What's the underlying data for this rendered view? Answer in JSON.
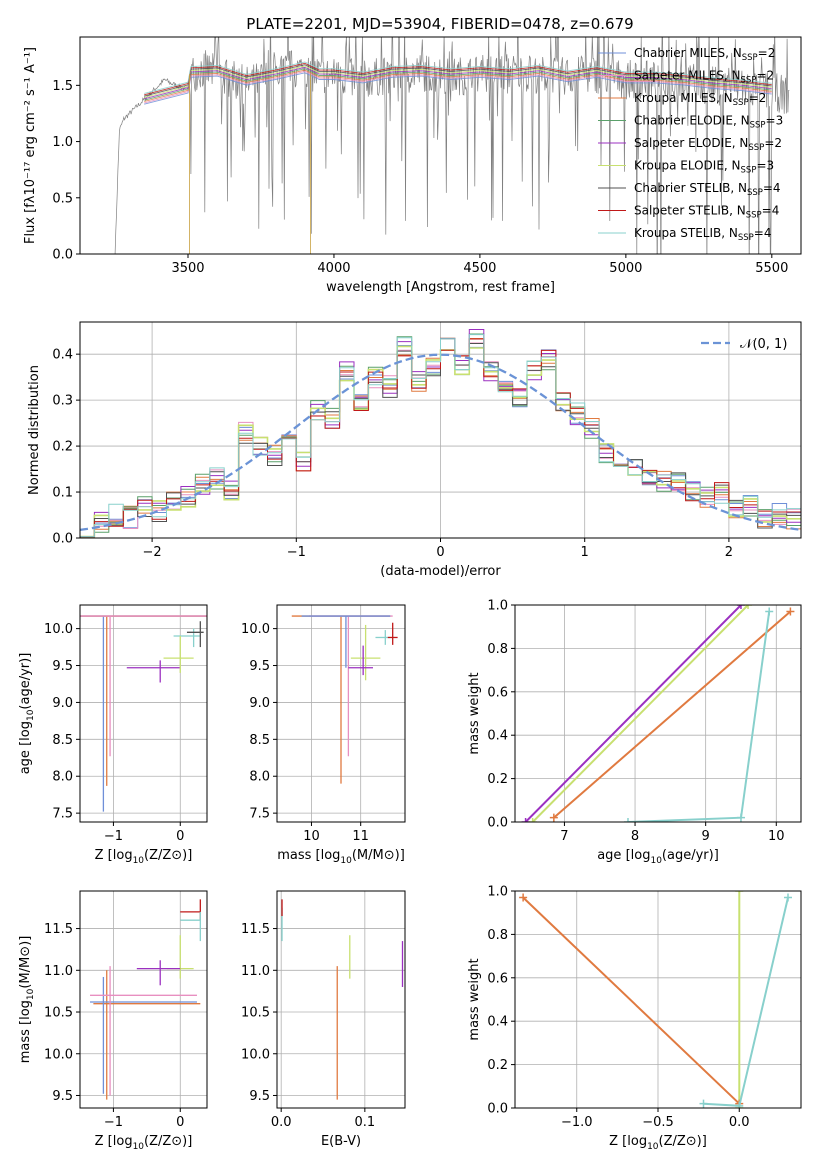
{
  "figure": {
    "title": "PLATE=2201, MJD=53904, FIBERID=0478, z=0.679"
  },
  "series_styles": [
    {
      "name": "Chabrier MILES, N_SSP=2",
      "label_main": "Chabrier MILES, N",
      "label_sub": "SSP",
      "label_tail": "=2",
      "color": "#6f8fd8"
    },
    {
      "name": "Salpeter MILES, N_SSP=2",
      "label_main": "Salpeter MILES, N",
      "label_sub": "SSP",
      "label_tail": "=2",
      "color": "#e88fc0"
    },
    {
      "name": "Kroupa MILES, N_SSP=2",
      "label_main": "Kroupa MILES, N",
      "label_sub": "SSP",
      "label_tail": "=2",
      "color": "#e07a40"
    },
    {
      "name": "Chabrier ELODIE, N_SSP=3",
      "label_main": "Chabrier ELODIE, N",
      "label_sub": "SSP",
      "label_tail": "=3",
      "color": "#5aa06a"
    },
    {
      "name": "Salpeter ELODIE, N_SSP=2",
      "label_main": "Salpeter ELODIE, N",
      "label_sub": "SSP",
      "label_tail": "=2",
      "color": "#9b30c0"
    },
    {
      "name": "Kroupa ELODIE, N_SSP=3",
      "label_main": "Kroupa ELODIE, N",
      "label_sub": "SSP",
      "label_tail": "=3",
      "color": "#c8e070"
    },
    {
      "name": "Chabrier STELIB, N_SSP=4",
      "label_main": "Chabrier STELIB, N",
      "label_sub": "SSP",
      "label_tail": "=4",
      "color": "#505050"
    },
    {
      "name": "Salpeter STELIB, N_SSP=4",
      "label_main": "Salpeter STELIB, N",
      "label_sub": "SSP",
      "label_tail": "=4",
      "color": "#c01818"
    },
    {
      "name": "Kroupa STELIB, N_SSP=4",
      "label_main": "Kroupa STELIB, N",
      "label_sub": "SSP",
      "label_tail": "=4",
      "color": "#88d0cc"
    }
  ],
  "chart_data": [
    {
      "id": "spectrum",
      "type": "line",
      "xlabel": "wavelength [Angstrom, rest frame]",
      "ylabel": "Flux [fλ10⁻¹⁷ erg cm⁻² s⁻¹ A⁻¹]",
      "xlim": [
        3130,
        5600
      ],
      "ylim": [
        0,
        1.93
      ],
      "xticks": [
        3500,
        4000,
        4500,
        5000,
        5500
      ],
      "yticks": [
        0.0,
        0.5,
        1.0,
        1.5
      ],
      "grid": false,
      "legend": "right",
      "data_color": "#808080",
      "data_envelope": {
        "x": [
          3250,
          3265,
          3280,
          3300,
          3320,
          3340,
          3360,
          3380,
          3400,
          3420,
          3440,
          3460,
          3480,
          3500,
          3510,
          3550,
          3600,
          3650,
          3700,
          3750,
          3800,
          3850,
          3900,
          3950,
          4000,
          4100,
          4200,
          4300,
          4400,
          4500,
          4600,
          4700,
          4800,
          4900,
          5000,
          5100,
          5200,
          5300,
          5400,
          5500,
          5560
        ],
        "y": [
          0.0,
          1.1,
          1.2,
          1.25,
          1.3,
          1.35,
          1.4,
          1.45,
          1.5,
          1.55,
          1.52,
          1.5,
          1.48,
          1.45,
          1.6,
          1.65,
          1.6,
          1.55,
          1.5,
          1.55,
          1.6,
          1.65,
          1.62,
          1.6,
          1.58,
          1.55,
          1.6,
          1.62,
          1.58,
          1.6,
          1.62,
          1.6,
          1.58,
          1.6,
          1.55,
          1.55,
          1.52,
          1.5,
          1.48,
          1.45,
          1.4
        ]
      },
      "model_x": [
        3350,
        3500,
        3510,
        3600,
        3700,
        3800,
        3900,
        3950,
        4000,
        4100,
        4200,
        4300,
        4400,
        4500,
        4600,
        4700,
        4800,
        4900,
        5000,
        5100,
        5200,
        5300,
        5400,
        5500
      ],
      "model_y": [
        1.38,
        1.48,
        1.62,
        1.63,
        1.55,
        1.6,
        1.66,
        1.6,
        1.6,
        1.57,
        1.62,
        1.63,
        1.6,
        1.62,
        1.6,
        1.63,
        1.58,
        1.62,
        1.57,
        1.57,
        1.55,
        1.52,
        1.5,
        1.47
      ]
    },
    {
      "id": "residuals",
      "type": "histogram",
      "xlabel": "(data-model)/error",
      "ylabel": "Normed distribution",
      "xlim": [
        -2.5,
        2.5
      ],
      "ylim": [
        0,
        0.47
      ],
      "xticks": [
        -2,
        -1,
        0,
        1,
        2
      ],
      "yticks": [
        0.0,
        0.1,
        0.2,
        0.3,
        0.4
      ],
      "grid": true,
      "legend": "top-right",
      "bin_edges": [
        -2.5,
        -2.4,
        -2.3,
        -2.2,
        -2.1,
        -2.0,
        -1.9,
        -1.8,
        -1.7,
        -1.6,
        -1.5,
        -1.4,
        -1.3,
        -1.2,
        -1.1,
        -1.0,
        -0.9,
        -0.8,
        -0.7,
        -0.6,
        -0.5,
        -0.4,
        -0.3,
        -0.2,
        -0.1,
        0.0,
        0.1,
        0.2,
        0.3,
        0.4,
        0.5,
        0.6,
        0.7,
        0.8,
        0.9,
        1.0,
        1.1,
        1.2,
        1.3,
        1.4,
        1.5,
        1.6,
        1.7,
        1.8,
        1.9,
        2.0,
        2.1,
        2.2,
        2.3,
        2.4,
        2.5
      ],
      "counts": [
        0.028,
        0.035,
        0.05,
        0.045,
        0.065,
        0.06,
        0.075,
        0.09,
        0.12,
        0.13,
        0.1,
        0.23,
        0.2,
        0.18,
        0.22,
        0.17,
        0.28,
        0.26,
        0.36,
        0.3,
        0.35,
        0.33,
        0.42,
        0.34,
        0.37,
        0.42,
        0.38,
        0.43,
        0.36,
        0.33,
        0.31,
        0.36,
        0.39,
        0.3,
        0.27,
        0.24,
        0.18,
        0.17,
        0.15,
        0.14,
        0.12,
        0.12,
        0.1,
        0.09,
        0.1,
        0.06,
        0.07,
        0.04,
        0.05,
        0.04
      ],
      "gaussian": {
        "name": "N(0,1)",
        "label": "𝒩(0, 1)",
        "color": "#6b93d6",
        "mu": 0,
        "sigma": 1
      }
    },
    {
      "id": "age_vs_Z",
      "type": "scatter",
      "xlabel_main": "Z [log",
      "xlabel_sub": "10",
      "xlabel_tail": "(Z/Z⊙)]",
      "ylabel_main": "age  [log",
      "ylabel_sub": "10",
      "ylabel_tail": "(age/yr)]",
      "xlim": [
        -1.5,
        0.4
      ],
      "ylim": [
        7.38,
        10.32
      ],
      "xticks": [
        -1,
        0
      ],
      "yticks": [
        7.5,
        8.0,
        8.5,
        9.0,
        9.5,
        10.0
      ],
      "grid": true,
      "points": [
        {
          "s": 0,
          "x": -1.15,
          "y": 10.17,
          "xerr": [
            1.4,
            1.6
          ],
          "yerr": [
            2.65,
            0
          ]
        },
        {
          "s": 2,
          "x": -1.1,
          "y": 10.17,
          "xerr": [
            1.45,
            1.55
          ],
          "yerr": [
            2.3,
            0
          ]
        },
        {
          "s": 1,
          "x": -1.05,
          "y": 10.17,
          "xerr": [
            1.3,
            1.5
          ],
          "yerr": [
            1.9,
            0
          ]
        },
        {
          "s": 8,
          "x": 0.2,
          "y": 9.9,
          "xerr": [
            0.3,
            0.1
          ],
          "yerr": [
            0.15,
            0.1
          ]
        },
        {
          "s": 6,
          "x": 0.3,
          "y": 9.95,
          "xerr": [
            0.2,
            0.05
          ],
          "yerr": [
            0.2,
            0.15
          ]
        },
        {
          "s": 4,
          "x": -0.3,
          "y": 9.47,
          "xerr": [
            0.5,
            0.3
          ],
          "yerr": [
            0.2,
            0.1
          ]
        },
        {
          "s": 5,
          "x": 0.0,
          "y": 9.6,
          "xerr": [
            0.25,
            0.2
          ],
          "yerr": [
            0.2,
            0.3
          ]
        }
      ]
    },
    {
      "id": "age_vs_mass",
      "type": "scatter",
      "xlabel_main": "mass [log",
      "xlabel_sub": "10",
      "xlabel_tail": "(M/M⊙)]",
      "xlim": [
        9.3,
        11.9
      ],
      "ylim": [
        7.38,
        10.32
      ],
      "xticks": [
        10,
        11
      ],
      "yticks": [
        7.5,
        8.0,
        8.5,
        9.0,
        9.5,
        10.0
      ],
      "grid": true,
      "points": [
        {
          "s": 2,
          "x": 10.6,
          "y": 10.17,
          "xerr": [
            1.0,
            1.0
          ],
          "yerr": [
            2.27,
            0
          ]
        },
        {
          "s": 1,
          "x": 10.75,
          "y": 10.17,
          "xerr": [
            0.8,
            0.9
          ],
          "yerr": [
            1.9,
            0
          ]
        },
        {
          "s": 0,
          "x": 10.7,
          "y": 10.17,
          "xerr": [
            0.9,
            0.9
          ],
          "yerr": [
            0.7,
            0
          ]
        },
        {
          "s": 8,
          "x": 11.5,
          "y": 9.88,
          "xerr": [
            0.2,
            0.1
          ],
          "yerr": [
            0.1,
            0.1
          ]
        },
        {
          "s": 7,
          "x": 11.65,
          "y": 9.88,
          "xerr": [
            0.1,
            0.1
          ],
          "yerr": [
            0.1,
            0.2
          ]
        },
        {
          "s": 5,
          "x": 11.1,
          "y": 9.6,
          "xerr": [
            0.3,
            0.3
          ],
          "yerr": [
            0.3,
            0.45
          ]
        },
        {
          "s": 4,
          "x": 11.05,
          "y": 9.47,
          "xerr": [
            0.3,
            0.2
          ],
          "yerr": [
            0.1,
            0.3
          ]
        }
      ]
    },
    {
      "id": "weight_vs_age",
      "type": "line",
      "xlabel_main": "age  [log",
      "xlabel_sub": "10",
      "xlabel_tail": "(age/yr)]",
      "ylabel": "mass weight",
      "xlim": [
        6.3,
        10.35
      ],
      "ylim": [
        0,
        1
      ],
      "xticks": [
        7,
        8,
        9,
        10
      ],
      "yticks": [
        0.0,
        0.2,
        0.4,
        0.6,
        0.8,
        1.0
      ],
      "grid": true,
      "lines": [
        {
          "s": 4,
          "x": [
            6.45,
            9.5
          ],
          "y": [
            0.0,
            1.0
          ]
        },
        {
          "s": 5,
          "x": [
            6.55,
            9.6
          ],
          "y": [
            0.0,
            1.0
          ]
        },
        {
          "s": 2,
          "x": [
            6.85,
            10.2
          ],
          "y": [
            0.02,
            0.97
          ]
        },
        {
          "s": 8,
          "x": [
            7.9,
            9.5,
            9.9
          ],
          "y": [
            0.0,
            0.02,
            0.97
          ]
        }
      ]
    },
    {
      "id": "mass_vs_Z",
      "type": "scatter",
      "xlabel_main": "Z [log",
      "xlabel_sub": "10",
      "xlabel_tail": "(Z/Z⊙)]",
      "ylabel_main": "mass [log",
      "ylabel_sub": "10",
      "ylabel_tail": "(M/M⊙)]",
      "xlim": [
        -1.5,
        0.4
      ],
      "ylim": [
        9.35,
        11.95
      ],
      "xticks": [
        -1,
        0
      ],
      "yticks": [
        9.5,
        10.0,
        10.5,
        11.0,
        11.5
      ],
      "grid": true,
      "points": [
        {
          "s": 2,
          "x": -1.1,
          "y": 10.6,
          "xerr": [
            0.2,
            1.4
          ],
          "yerr": [
            1.15,
            0.4
          ]
        },
        {
          "s": 0,
          "x": -1.15,
          "y": 10.62,
          "xerr": [
            0.2,
            1.4
          ],
          "yerr": [
            1.1,
            0.3
          ]
        },
        {
          "s": 1,
          "x": -1.05,
          "y": 10.7,
          "xerr": [
            0.3,
            1.3
          ],
          "yerr": [
            1.2,
            0.35
          ]
        },
        {
          "s": 7,
          "x": 0.3,
          "y": 11.7,
          "xerr": [
            0.3,
            0.0
          ],
          "yerr": [
            0.1,
            0.15
          ]
        },
        {
          "s": 8,
          "x": 0.3,
          "y": 11.6,
          "xerr": [
            0.3,
            0.0
          ],
          "yerr": [
            0.25,
            0.1
          ]
        },
        {
          "s": 5,
          "x": 0.0,
          "y": 11.02,
          "xerr": [
            0.2,
            0.2
          ],
          "yerr": [
            0.12,
            0.4
          ]
        },
        {
          "s": 4,
          "x": -0.3,
          "y": 11.02,
          "xerr": [
            0.35,
            0.3
          ],
          "yerr": [
            0.2,
            0.1
          ]
        }
      ]
    },
    {
      "id": "mass_vs_ebv",
      "type": "scatter",
      "xlabel": "E(B-V)",
      "xlim": [
        -0.005,
        0.148
      ],
      "ylim": [
        9.35,
        11.95
      ],
      "xticks": [
        0.0,
        0.1
      ],
      "yticks": [
        9.5,
        10.0,
        10.5,
        11.0,
        11.5
      ],
      "grid": true,
      "points": [
        {
          "s": 2,
          "x": 0.067,
          "y": 10.5,
          "xerr": [
            0,
            0
          ],
          "yerr": [
            1.05,
            0.55
          ]
        },
        {
          "s": 5,
          "x": 0.082,
          "y": 11.15,
          "xerr": [
            0,
            0
          ],
          "yerr": [
            0.25,
            0.27
          ]
        },
        {
          "s": 4,
          "x": 0.145,
          "y": 11.05,
          "xerr": [
            0,
            0
          ],
          "yerr": [
            0.25,
            0.3
          ]
        },
        {
          "s": 8,
          "x": 0.001,
          "y": 11.5,
          "xerr": [
            0,
            0
          ],
          "yerr": [
            0.15,
            0.25
          ]
        },
        {
          "s": 7,
          "x": 0.001,
          "y": 11.75,
          "xerr": [
            0,
            0
          ],
          "yerr": [
            0.1,
            0.1
          ]
        }
      ]
    },
    {
      "id": "weight_vs_Z",
      "type": "line",
      "xlabel_main": "Z [log",
      "xlabel_sub": "10",
      "xlabel_tail": "(Z/Z⊙)]",
      "ylabel": "mass weight",
      "xlim": [
        -1.38,
        0.38
      ],
      "ylim": [
        0,
        1
      ],
      "xticks": [
        -1.0,
        -0.5,
        0.0
      ],
      "yticks": [
        0.0,
        0.2,
        0.4,
        0.6,
        0.8,
        1.0
      ],
      "grid": true,
      "lines": [
        {
          "s": 5,
          "x": [
            0.0,
            0.0
          ],
          "y": [
            0.0,
            1.0
          ]
        },
        {
          "s": 2,
          "x": [
            -1.33,
            0.0
          ],
          "y": [
            0.97,
            0.02
          ]
        },
        {
          "s": 8,
          "x": [
            -0.22,
            0.0,
            0.3
          ],
          "y": [
            0.02,
            0.01,
            0.97
          ]
        }
      ]
    }
  ]
}
